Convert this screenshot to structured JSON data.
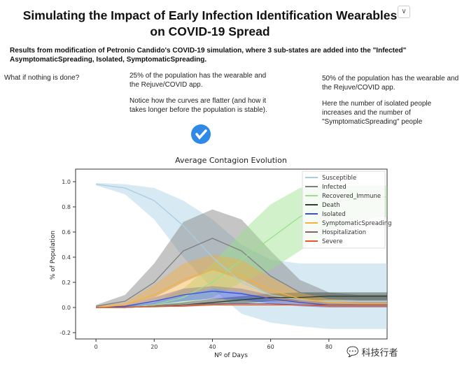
{
  "header": {
    "title_line1": "Simulating the Impact of Early Infection Identification Wearables",
    "title_line2": "on COVID-19 Spread",
    "subtitle_line1": "Results from modification of Petronio Candido's COVID-19 simulation, where 3 sub-states are added into the \"Infected\"",
    "subtitle_line2": "AsymptomaticSpreading, Isolated, SymptomaticSpreading.",
    "dropdown_icon": "chevron-down-icon"
  },
  "columns": [
    {
      "paragraphs": [
        "What if nothing is done?"
      ]
    },
    {
      "paragraphs": [
        "25% of the population has the wearable and the Rejuve/COVID app.",
        "Notice how the curves are flatter (and how it takes longer before the population is stable)."
      ]
    },
    {
      "paragraphs": [
        "50% of the population has the wearable and the Rejuve/COVID app.",
        "Here the number of isolated people increases and the number of \"SymptomaticSpreading\" people"
      ]
    }
  ],
  "selected_icon": "checkmark-circle-icon",
  "watermark": "科技行者",
  "chart_data": {
    "type": "line",
    "title": "Average Contagion Evolution",
    "xlabel": "Nº of Days",
    "ylabel": "% of Population",
    "xlim": [
      -7,
      100
    ],
    "ylim": [
      -0.25,
      1.1
    ],
    "xticks": [
      0,
      20,
      40,
      60,
      80
    ],
    "yticks": [
      -0.2,
      0.0,
      0.2,
      0.4,
      0.6,
      0.8,
      1.0
    ],
    "grid": false,
    "legend_placement": "top-right",
    "x": [
      0,
      10,
      20,
      30,
      40,
      50,
      60,
      70,
      80,
      90,
      100
    ],
    "series": [
      {
        "name": "Susceptible",
        "color": "#a6cee3",
        "values": [
          0.98,
          0.95,
          0.85,
          0.65,
          0.4,
          0.2,
          0.1,
          0.06,
          0.05,
          0.05,
          0.05
        ],
        "lower": [
          0.97,
          0.9,
          0.7,
          0.4,
          0.15,
          -0.05,
          -0.12,
          -0.15,
          -0.17,
          -0.17,
          -0.17
        ],
        "upper": [
          0.99,
          0.98,
          0.95,
          0.85,
          0.7,
          0.5,
          0.38,
          0.35,
          0.35,
          0.35,
          0.35
        ]
      },
      {
        "name": "Infected",
        "color": "#7f7f7f",
        "values": [
          0.01,
          0.05,
          0.2,
          0.45,
          0.55,
          0.45,
          0.25,
          0.12,
          0.07,
          0.06,
          0.06
        ],
        "lower": [
          0,
          0.02,
          0.08,
          0.2,
          0.3,
          0.22,
          0.1,
          0.04,
          0.02,
          0.02,
          0.02
        ],
        "upper": [
          0.02,
          0.1,
          0.35,
          0.68,
          0.78,
          0.7,
          0.45,
          0.22,
          0.12,
          0.1,
          0.1
        ]
      },
      {
        "name": "Recovered_Immune",
        "color": "#98df8a",
        "values": [
          0,
          0,
          0.02,
          0.08,
          0.2,
          0.38,
          0.55,
          0.72,
          0.83,
          0.87,
          0.88
        ],
        "lower": [
          0,
          0,
          0.01,
          0.03,
          0.08,
          0.2,
          0.3,
          0.45,
          0.6,
          0.7,
          0.72
        ],
        "upper": [
          0,
          0.01,
          0.04,
          0.15,
          0.35,
          0.6,
          0.82,
          0.95,
          0.97,
          0.97,
          0.97
        ]
      },
      {
        "name": "Death",
        "color": "#2f3f2f",
        "values": [
          0,
          0,
          0.01,
          0.02,
          0.04,
          0.06,
          0.08,
          0.08,
          0.09,
          0.09,
          0.09
        ],
        "lower": [
          0,
          0,
          0,
          0.01,
          0.02,
          0.03,
          0.05,
          0.05,
          0.06,
          0.06,
          0.06
        ],
        "upper": [
          0,
          0.01,
          0.02,
          0.04,
          0.07,
          0.09,
          0.11,
          0.12,
          0.12,
          0.12,
          0.12
        ]
      },
      {
        "name": "Isolated",
        "color": "#3b4fd9",
        "values": [
          0,
          0.01,
          0.05,
          0.1,
          0.13,
          0.11,
          0.07,
          0.04,
          0.02,
          0.02,
          0.02
        ],
        "lower": [
          0,
          0,
          0.02,
          0.05,
          0.07,
          0.06,
          0.03,
          0.01,
          0,
          0,
          0
        ],
        "upper": [
          0,
          0.02,
          0.08,
          0.15,
          0.17,
          0.15,
          0.1,
          0.06,
          0.04,
          0.04,
          0.04
        ]
      },
      {
        "name": "SymptomaticSpreading",
        "color": "#f5b041",
        "values": [
          0,
          0.02,
          0.1,
          0.22,
          0.3,
          0.25,
          0.14,
          0.07,
          0.04,
          0.03,
          0.03
        ],
        "lower": [
          0,
          0.01,
          0.05,
          0.1,
          0.15,
          0.12,
          0.06,
          0.03,
          0.01,
          0.01,
          0.01
        ],
        "upper": [
          0.01,
          0.04,
          0.18,
          0.35,
          0.42,
          0.38,
          0.24,
          0.12,
          0.07,
          0.05,
          0.05
        ]
      },
      {
        "name": "Hospitalization",
        "color": "#8c5e6e",
        "values": [
          0,
          0,
          0.01,
          0.02,
          0.03,
          0.03,
          0.03,
          0.02,
          0.02,
          0.02,
          0.02
        ]
      },
      {
        "name": "Severe",
        "color": "#e8572a",
        "values": [
          0,
          0,
          0.01,
          0.01,
          0.02,
          0.02,
          0.02,
          0.02,
          0.01,
          0.01,
          0.01
        ]
      }
    ]
  }
}
